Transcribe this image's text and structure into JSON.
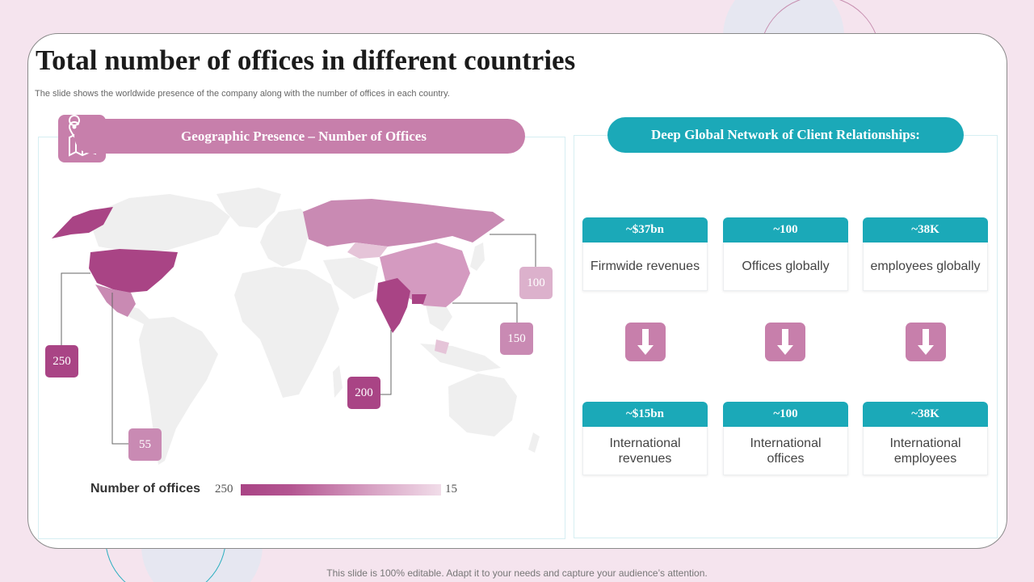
{
  "slide": {
    "title": "Total number of offices in different countries",
    "subtitle": "The slide shows the worldwide presence of the company along with the number of offices in each country.",
    "footer": "This slide is 100% editable. Adapt it to your needs and capture your audience’s attention."
  },
  "map_panel": {
    "header": "Geographic Presence – Number of Offices",
    "icon": "map-pin-icon",
    "markers": [
      {
        "country": "USA",
        "value": "250",
        "color": "#a94485"
      },
      {
        "country": "Mexico",
        "value": "55",
        "color": "#c98ab3"
      },
      {
        "country": "India",
        "value": "200",
        "color": "#a94485"
      },
      {
        "country": "China",
        "value": "150",
        "color": "#c98ab3"
      },
      {
        "country": "Russia",
        "value": "100",
        "color": "#dcb1cc"
      }
    ],
    "legend": {
      "label": "Number of offices",
      "max": "250",
      "min": "15"
    }
  },
  "network_panel": {
    "header": "Deep Global Network of Client Relationships:",
    "top_stats": [
      {
        "value": "~$37bn",
        "label": "Firmwide revenues"
      },
      {
        "value": "~100",
        "label": "Offices globally"
      },
      {
        "value": "~38K",
        "label": "employees globally"
      }
    ],
    "bottom_stats": [
      {
        "value": "~$15bn",
        "label": "International revenues"
      },
      {
        "value": "~100",
        "label": "International offices"
      },
      {
        "value": "~38K",
        "label": "International employees"
      }
    ],
    "arrow_icon": "arrow-down-icon"
  },
  "colors": {
    "accent_pink": "#c77fab",
    "accent_teal": "#1ba9b8",
    "dark_pink": "#a94485",
    "background": "#f5e4ee"
  }
}
